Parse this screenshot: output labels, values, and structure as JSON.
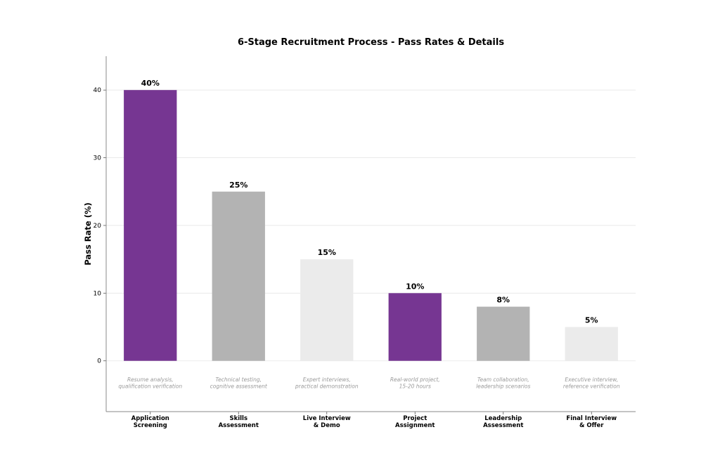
{
  "chart_data": {
    "type": "bar",
    "title": "6-Stage Recruitment Process - Pass Rates & Details",
    "xlabel": "",
    "ylabel": "Pass Rate (%)",
    "ylim": [
      -7.5,
      45
    ],
    "yticks": [
      0,
      10,
      20,
      30,
      40
    ],
    "grid": true,
    "categories": [
      [
        "Application",
        "Screening"
      ],
      [
        "Skills",
        "Assessment"
      ],
      [
        "Live Interview",
        "& Demo"
      ],
      [
        "Project",
        "Assignment"
      ],
      [
        "Leadership",
        "Assessment"
      ],
      [
        "Final Interview",
        "& Offer"
      ]
    ],
    "values": [
      40,
      25,
      15,
      10,
      8,
      5
    ],
    "value_labels": [
      "40%",
      "25%",
      "15%",
      "10%",
      "8%",
      "5%"
    ],
    "descriptions": [
      [
        "Resume analysis,",
        "qualification verification"
      ],
      [
        "Technical testing,",
        "cognitive assessment"
      ],
      [
        "Expert interviews,",
        "practical demonstration"
      ],
      [
        "Real-world project,",
        "15-20 hours"
      ],
      [
        "Team collaboration,",
        "leadership scenarios"
      ],
      [
        "Executive interview,",
        "reference verification"
      ]
    ],
    "colors": [
      "#763692",
      "#b3b3b3",
      "#ebebeb",
      "#763692",
      "#b3b3b3",
      "#ebebeb"
    ]
  }
}
